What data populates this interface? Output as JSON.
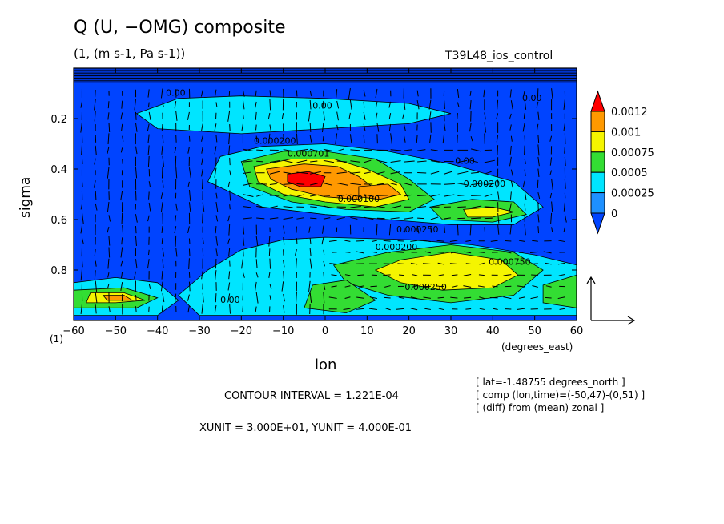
{
  "chart_data": {
    "type": "heatmap",
    "title": "Q (U, −OMG) composite",
    "subtitle": "(1, (m s-1, Pa s-1))",
    "experiment": "T39L48_ios_control",
    "xlabel": "lon",
    "xunits": "(degrees_east)",
    "ylabel": "sigma",
    "corner_label": "(1)",
    "xlim": [
      -60,
      60
    ],
    "ylim": [
      0.0,
      1.0
    ],
    "y_inverted": true,
    "xticks": [
      -60,
      -50,
      -40,
      -30,
      -20,
      -10,
      0,
      10,
      20,
      30,
      40,
      50,
      60
    ],
    "yticks": [
      0.2,
      0.4,
      0.6,
      0.8
    ],
    "colorbar": {
      "levels": [
        "0.0012",
        "0.001",
        "0.00075",
        "0.0005",
        "0.00025",
        "0"
      ],
      "colors": [
        "#ff0000",
        "#ff9900",
        "#f5f500",
        "#33dd33",
        "#00e5ff",
        "#1e90ff",
        "#0044ff"
      ]
    },
    "fill_regions": [
      {
        "level": 1,
        "pts": [
          [
            -25,
            0.35
          ],
          [
            -15,
            0.31
          ],
          [
            0,
            0.3
          ],
          [
            15,
            0.33
          ],
          [
            30,
            0.38
          ],
          [
            45,
            0.45
          ],
          [
            52,
            0.55
          ],
          [
            45,
            0.62
          ],
          [
            30,
            0.62
          ],
          [
            15,
            0.6
          ],
          [
            0,
            0.58
          ],
          [
            -15,
            0.55
          ],
          [
            -28,
            0.45
          ]
        ]
      },
      {
        "level": 1,
        "pts": [
          [
            -20,
            0.72
          ],
          [
            -10,
            0.68
          ],
          [
            0,
            0.67
          ],
          [
            20,
            0.68
          ],
          [
            35,
            0.7
          ],
          [
            50,
            0.74
          ],
          [
            60,
            0.78
          ],
          [
            60,
            0.98
          ],
          [
            -30,
            0.98
          ],
          [
            -35,
            0.9
          ],
          [
            -28,
            0.8
          ]
        ]
      },
      {
        "level": 1,
        "pts": [
          [
            -45,
            0.18
          ],
          [
            -35,
            0.12
          ],
          [
            -20,
            0.11
          ],
          [
            0,
            0.12
          ],
          [
            20,
            0.14
          ],
          [
            30,
            0.18
          ],
          [
            20,
            0.22
          ],
          [
            0,
            0.24
          ],
          [
            -20,
            0.26
          ],
          [
            -40,
            0.24
          ]
        ]
      },
      {
        "level": 1,
        "pts": [
          [
            -60,
            0.85
          ],
          [
            -50,
            0.83
          ],
          [
            -40,
            0.85
          ],
          [
            -35,
            0.92
          ],
          [
            -40,
            0.98
          ],
          [
            -60,
            0.98
          ]
        ]
      },
      {
        "level": 2,
        "pts": [
          [
            -20,
            0.37
          ],
          [
            -10,
            0.33
          ],
          [
            0,
            0.33
          ],
          [
            12,
            0.36
          ],
          [
            20,
            0.44
          ],
          [
            26,
            0.52
          ],
          [
            20,
            0.57
          ],
          [
            5,
            0.56
          ],
          [
            -8,
            0.53
          ],
          [
            -18,
            0.47
          ]
        ]
      },
      {
        "level": 2,
        "pts": [
          [
            25,
            0.55
          ],
          [
            35,
            0.52
          ],
          [
            45,
            0.53
          ],
          [
            48,
            0.58
          ],
          [
            40,
            0.61
          ],
          [
            28,
            0.6
          ]
        ]
      },
      {
        "level": 2,
        "pts": [
          [
            15,
            0.73
          ],
          [
            30,
            0.7
          ],
          [
            45,
            0.73
          ],
          [
            52,
            0.8
          ],
          [
            45,
            0.9
          ],
          [
            30,
            0.93
          ],
          [
            15,
            0.9
          ],
          [
            5,
            0.85
          ],
          [
            2,
            0.78
          ]
        ]
      },
      {
        "level": 2,
        "pts": [
          [
            -3,
            0.86
          ],
          [
            5,
            0.84
          ],
          [
            12,
            0.92
          ],
          [
            5,
            0.97
          ],
          [
            -5,
            0.95
          ]
        ]
      },
      {
        "level": 2,
        "pts": [
          [
            -60,
            0.88
          ],
          [
            -48,
            0.87
          ],
          [
            -40,
            0.91
          ],
          [
            -45,
            0.95
          ],
          [
            -60,
            0.95
          ]
        ]
      },
      {
        "level": 2,
        "pts": [
          [
            52,
            0.86
          ],
          [
            60,
            0.82
          ],
          [
            60,
            0.95
          ],
          [
            52,
            0.93
          ]
        ]
      },
      {
        "level": 3,
        "pts": [
          [
            -17,
            0.39
          ],
          [
            -8,
            0.36
          ],
          [
            2,
            0.36
          ],
          [
            10,
            0.4
          ],
          [
            18,
            0.46
          ],
          [
            20,
            0.52
          ],
          [
            12,
            0.55
          ],
          [
            0,
            0.53
          ],
          [
            -10,
            0.5
          ],
          [
            -16,
            0.45
          ]
        ]
      },
      {
        "level": 3,
        "pts": [
          [
            33,
            0.56
          ],
          [
            40,
            0.55
          ],
          [
            45,
            0.57
          ],
          [
            40,
            0.59
          ],
          [
            34,
            0.59
          ]
        ]
      },
      {
        "level": 3,
        "pts": [
          [
            18,
            0.76
          ],
          [
            30,
            0.73
          ],
          [
            42,
            0.76
          ],
          [
            46,
            0.82
          ],
          [
            40,
            0.87
          ],
          [
            28,
            0.88
          ],
          [
            18,
            0.85
          ],
          [
            12,
            0.8
          ]
        ]
      },
      {
        "level": 3,
        "pts": [
          [
            -56,
            0.89
          ],
          [
            -48,
            0.89
          ],
          [
            -43,
            0.92
          ],
          [
            -50,
            0.93
          ],
          [
            -57,
            0.93
          ]
        ]
      },
      {
        "level": 4,
        "pts": [
          [
            -14,
            0.4
          ],
          [
            -5,
            0.38
          ],
          [
            3,
            0.39
          ],
          [
            8,
            0.43
          ],
          [
            12,
            0.48
          ],
          [
            8,
            0.52
          ],
          [
            0,
            0.51
          ],
          [
            -8,
            0.48
          ],
          [
            -13,
            0.44
          ]
        ]
      },
      {
        "level": 4,
        "pts": [
          [
            8,
            0.47
          ],
          [
            15,
            0.46
          ],
          [
            18,
            0.5
          ],
          [
            13,
            0.52
          ],
          [
            8,
            0.51
          ]
        ]
      },
      {
        "level": 4,
        "pts": [
          [
            -53,
            0.9
          ],
          [
            -48,
            0.9
          ],
          [
            -46,
            0.92
          ],
          [
            -52,
            0.92
          ]
        ]
      },
      {
        "level": 5,
        "pts": [
          [
            -9,
            0.42
          ],
          [
            -4,
            0.41
          ],
          [
            0,
            0.43
          ],
          [
            -1,
            0.47
          ],
          [
            -6,
            0.47
          ],
          [
            -9,
            0.45
          ]
        ]
      }
    ],
    "contour_labels": [
      {
        "text": "0.000200",
        "x": -17,
        "y": 0.3
      },
      {
        "text": "0.000701",
        "x": -9,
        "y": 0.35
      },
      {
        "text": "0.000100",
        "x": 3,
        "y": 0.53
      },
      {
        "text": "0.00",
        "x": 31,
        "y": 0.38
      },
      {
        "text": "0.000200",
        "x": 33,
        "y": 0.47
      },
      {
        "text": "0.000250",
        "x": 17,
        "y": 0.65
      },
      {
        "text": "0.000200",
        "x": 12,
        "y": 0.72
      },
      {
        "text": "0.000750",
        "x": 39,
        "y": 0.78
      },
      {
        "text": "0.000250",
        "x": 19,
        "y": 0.88
      },
      {
        "text": "0.00",
        "x": -25,
        "y": 0.93
      },
      {
        "text": "0.00",
        "x": -38,
        "y": 0.11
      },
      {
        "text": "0.00",
        "x": -3,
        "y": 0.16
      },
      {
        "text": "0.00",
        "x": 47,
        "y": 0.13
      }
    ],
    "vector_reference": {
      "xunit": "3.000E+01",
      "yunit": "4.000E-01"
    }
  },
  "footer": {
    "contour_interval": "CONTOUR INTERVAL = 1.221E-04",
    "units": "XUNIT = 3.000E+01, YUNIT = 4.000E-01",
    "info": [
      "[ lat=-1.48755 degrees_north ]",
      "[ comp (lon,time)=(-50,47)-(0,51) ]",
      "[ (diff) from (mean) zonal ]"
    ]
  }
}
